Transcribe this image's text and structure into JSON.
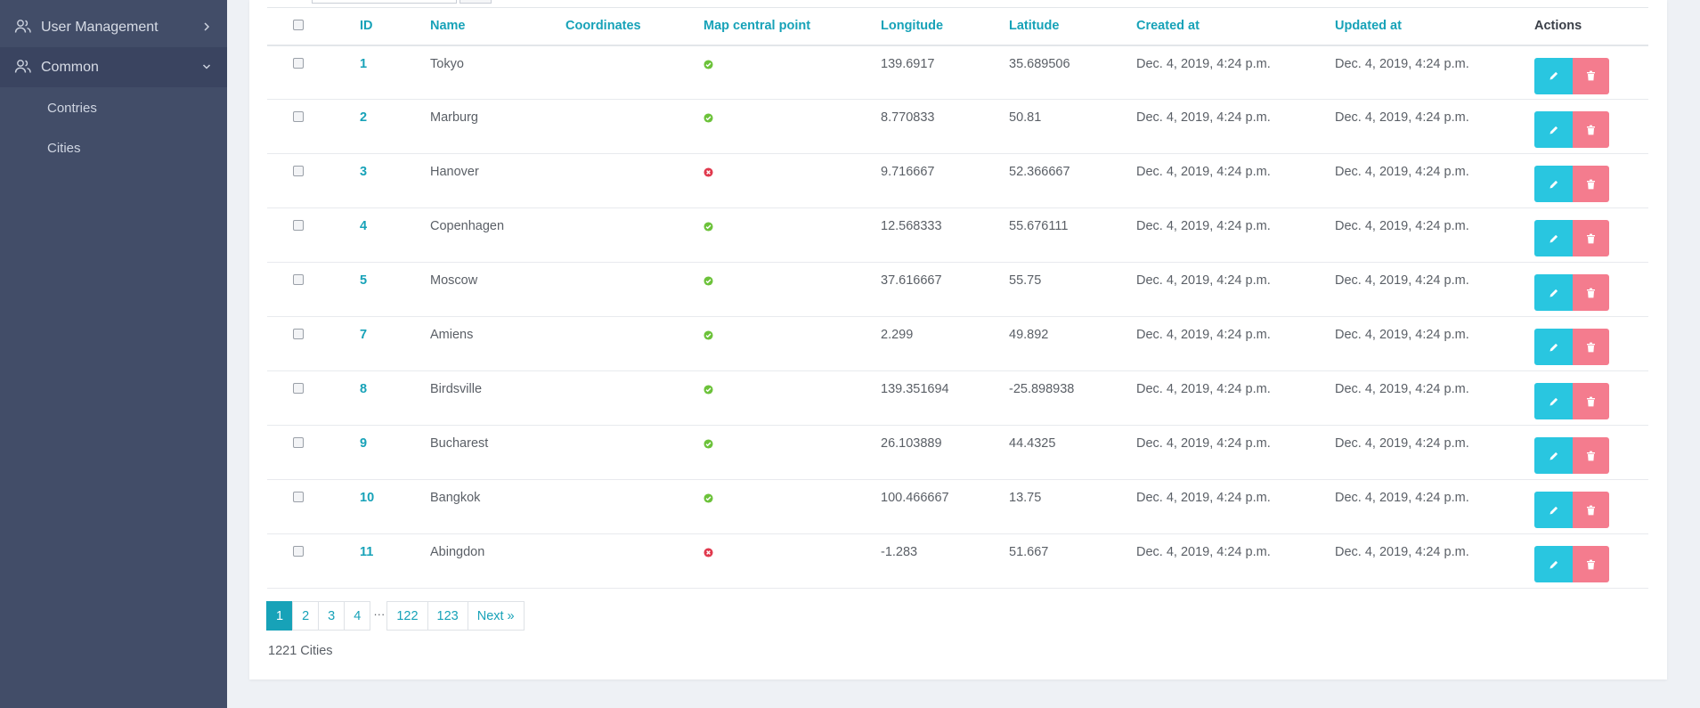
{
  "sidebar": {
    "items": [
      {
        "label": "User Management",
        "icon": "users-icon",
        "caret": "chevron-right-icon"
      },
      {
        "label": "Common",
        "icon": "users-icon",
        "caret": "chevron-down-icon"
      }
    ],
    "sub_items": [
      {
        "label": "Contries"
      },
      {
        "label": "Cities"
      }
    ]
  },
  "table": {
    "headers": {
      "id": "ID",
      "name": "Name",
      "coordinates": "Coordinates",
      "map_central_point": "Map central point",
      "longitude": "Longitude",
      "latitude": "Latitude",
      "created_at": "Created at",
      "updated_at": "Updated at",
      "actions": "Actions"
    },
    "rows": [
      {
        "id": "1",
        "name": "Tokyo",
        "coordinates": "",
        "central": true,
        "longitude": "139.6917",
        "latitude": "35.689506",
        "created_at": "Dec. 4, 2019, 4:24 p.m.",
        "updated_at": "Dec. 4, 2019, 4:24 p.m."
      },
      {
        "id": "2",
        "name": "Marburg",
        "coordinates": "",
        "central": true,
        "longitude": "8.770833",
        "latitude": "50.81",
        "created_at": "Dec. 4, 2019, 4:24 p.m.",
        "updated_at": "Dec. 4, 2019, 4:24 p.m."
      },
      {
        "id": "3",
        "name": "Hanover",
        "coordinates": "",
        "central": false,
        "longitude": "9.716667",
        "latitude": "52.366667",
        "created_at": "Dec. 4, 2019, 4:24 p.m.",
        "updated_at": "Dec. 4, 2019, 4:24 p.m."
      },
      {
        "id": "4",
        "name": "Copenhagen",
        "coordinates": "",
        "central": true,
        "longitude": "12.568333",
        "latitude": "55.676111",
        "created_at": "Dec. 4, 2019, 4:24 p.m.",
        "updated_at": "Dec. 4, 2019, 4:24 p.m."
      },
      {
        "id": "5",
        "name": "Moscow",
        "coordinates": "",
        "central": true,
        "longitude": "37.616667",
        "latitude": "55.75",
        "created_at": "Dec. 4, 2019, 4:24 p.m.",
        "updated_at": "Dec. 4, 2019, 4:24 p.m."
      },
      {
        "id": "7",
        "name": "Amiens",
        "coordinates": "",
        "central": true,
        "longitude": "2.299",
        "latitude": "49.892",
        "created_at": "Dec. 4, 2019, 4:24 p.m.",
        "updated_at": "Dec. 4, 2019, 4:24 p.m."
      },
      {
        "id": "8",
        "name": "Birdsville",
        "coordinates": "",
        "central": true,
        "longitude": "139.351694",
        "latitude": "-25.898938",
        "created_at": "Dec. 4, 2019, 4:24 p.m.",
        "updated_at": "Dec. 4, 2019, 4:24 p.m."
      },
      {
        "id": "9",
        "name": "Bucharest",
        "coordinates": "",
        "central": true,
        "longitude": "26.103889",
        "latitude": "44.4325",
        "created_at": "Dec. 4, 2019, 4:24 p.m.",
        "updated_at": "Dec. 4, 2019, 4:24 p.m."
      },
      {
        "id": "10",
        "name": "Bangkok",
        "coordinates": "",
        "central": true,
        "longitude": "100.466667",
        "latitude": "13.75",
        "created_at": "Dec. 4, 2019, 4:24 p.m.",
        "updated_at": "Dec. 4, 2019, 4:24 p.m."
      },
      {
        "id": "11",
        "name": "Abingdon",
        "coordinates": "",
        "central": false,
        "longitude": "-1.283",
        "latitude": "51.667",
        "created_at": "Dec. 4, 2019, 4:24 p.m.",
        "updated_at": "Dec. 4, 2019, 4:24 p.m."
      }
    ]
  },
  "pagination": {
    "pages": [
      "1",
      "2",
      "3",
      "4"
    ],
    "ellipsis": "···",
    "tail_pages": [
      "122",
      "123"
    ],
    "next": "Next »",
    "current": "1"
  },
  "count_text": "1221 Cities",
  "colors": {
    "sidebar_bg": "#424d68",
    "accent": "#17a2b8",
    "edit_button": "#29c6e0",
    "delete_button": "#f47c8e",
    "status_ok": "#6cc23a",
    "status_error": "#e0394d"
  }
}
